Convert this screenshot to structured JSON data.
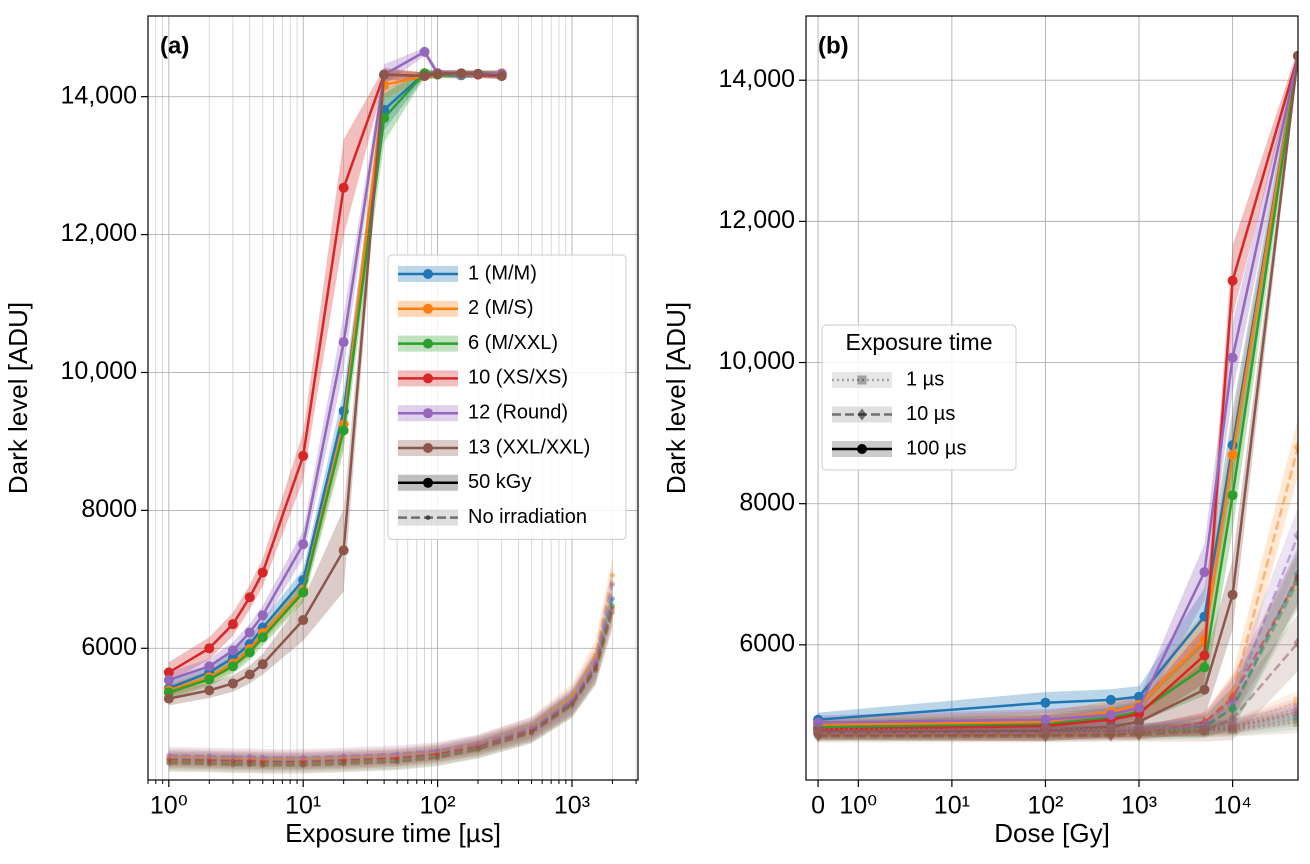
{
  "chart_data": [
    {
      "type": "line",
      "panel_label": "(a)",
      "xlabel": "Exposure time [µs]",
      "ylabel": "Dark level [ADU]",
      "xscale": "log",
      "xlim": [
        0.7,
        3100
      ],
      "ylim": [
        4090,
        15170
      ],
      "xticks": [
        {
          "value": 1,
          "label": "10⁰"
        },
        {
          "value": 10,
          "label": "10¹"
        },
        {
          "value": 100,
          "label": "10²"
        },
        {
          "value": 1000,
          "label": "10³"
        }
      ],
      "xminorticks": [
        0.7,
        0.8,
        0.9,
        2,
        3,
        4,
        5,
        6,
        7,
        8,
        9,
        20,
        30,
        40,
        50,
        60,
        70,
        80,
        90,
        200,
        300,
        400,
        500,
        600,
        700,
        800,
        900,
        2000,
        3000
      ],
      "yticks": [
        6000,
        8000,
        {
          "value": 10000,
          "label": "10,000"
        },
        {
          "value": 12000,
          "label": "12,000"
        },
        {
          "value": 14000,
          "label": "14,000"
        }
      ],
      "grid": true,
      "legend": "center right",
      "conditions": [
        {
          "name": "50 kGy",
          "linestyle": "solid",
          "marker": "circle",
          "color": "#000000",
          "alpha": 1,
          "x": [
            1,
            2,
            3,
            4,
            5,
            10,
            20,
            40,
            80,
            100,
            150,
            200,
            300
          ]
        },
        {
          "name": "No irradiation",
          "linestyle": "dashed",
          "marker": "point",
          "color": "#000000",
          "alpha": 0.5,
          "x": [
            1,
            2,
            3,
            4,
            5,
            10,
            20,
            50,
            100,
            200,
            500,
            1000,
            1500,
            2000
          ]
        }
      ],
      "series": [
        {
          "name": "1 (M/M)",
          "color": "#1f77b4",
          "values": [
            [
              5420,
              5650,
              5860,
              6060,
              6300,
              6990,
              9440,
              13810,
              14340,
              14330,
              14320,
              14330,
              14330
            ],
            [
              4400,
              4390,
              4380,
              4380,
              4370,
              4370,
              4390,
              4420,
              4480,
              4590,
              4820,
              5220,
              5750,
              6720
            ]
          ],
          "errors": [
            [
              100,
              100,
              110,
              110,
              120,
              150,
              300,
              300,
              60,
              50,
              50,
              50,
              50
            ],
            [
              120,
              120,
              120,
              120,
              120,
              120,
              120,
              120,
              120,
              130,
              150,
              180,
              220,
              250
            ]
          ]
        },
        {
          "name": "2 (M/S)",
          "color": "#ff7f0e",
          "values": [
            [
              5390,
              5580,
              5780,
              5990,
              6220,
              6840,
              9250,
              14170,
              14300,
              14320,
              14330,
              14320,
              14340
            ],
            [
              4420,
              4410,
              4400,
              4400,
              4390,
              4390,
              4410,
              4440,
              4500,
              4610,
              4860,
              5300,
              5900,
              7060
            ]
          ],
          "errors": [
            [
              100,
              100,
              110,
              110,
              120,
              150,
              300,
              200,
              60,
              50,
              50,
              50,
              50
            ],
            [
              120,
              120,
              120,
              120,
              120,
              120,
              120,
              120,
              120,
              130,
              150,
              180,
              220,
              250
            ]
          ]
        },
        {
          "name": "6 (M/XXL)",
          "color": "#2ca02c",
          "values": [
            [
              5360,
              5550,
              5740,
              5940,
              6160,
              6810,
              9160,
              13690,
              14340,
              14320,
              14310,
              14330,
              14320
            ],
            [
              4350,
              4340,
              4330,
              4330,
              4320,
              4320,
              4340,
              4370,
              4430,
              4540,
              4780,
              5180,
              5700,
              6620
            ]
          ],
          "errors": [
            [
              100,
              100,
              110,
              110,
              120,
              150,
              300,
              350,
              60,
              50,
              50,
              50,
              50
            ],
            [
              120,
              120,
              120,
              120,
              120,
              120,
              120,
              120,
              120,
              130,
              150,
              180,
              220,
              250
            ]
          ]
        },
        {
          "name": "10 (XS/XS)",
          "color": "#d62728",
          "values": [
            [
              5650,
              6000,
              6350,
              6740,
              7100,
              8790,
              12680,
              14320,
              14300,
              14340,
              14330,
              14320,
              14300
            ],
            [
              4380,
              4370,
              4360,
              4360,
              4350,
              4350,
              4370,
              4400,
              4460,
              4570,
              4800,
              5200,
              5720,
              6580
            ]
          ],
          "errors": [
            [
              150,
              160,
              170,
              180,
              200,
              350,
              700,
              100,
              50,
              50,
              50,
              50,
              50
            ],
            [
              120,
              120,
              120,
              120,
              120,
              120,
              120,
              120,
              120,
              130,
              150,
              180,
              220,
              250
            ]
          ]
        },
        {
          "name": "12 (Round)",
          "color": "#9467bd",
          "values": [
            [
              5540,
              5740,
              5970,
              6230,
              6480,
              7510,
              10440,
              14320,
              14650,
              14340,
              14320,
              14330,
              14330
            ],
            [
              4450,
              4440,
              4430,
              4430,
              4420,
              4420,
              4440,
              4470,
              4520,
              4620,
              4850,
              5250,
              5800,
              6930
            ]
          ],
          "errors": [
            [
              110,
              110,
              120,
              130,
              140,
              200,
              400,
              150,
              60,
              50,
              50,
              50,
              50
            ],
            [
              120,
              120,
              120,
              120,
              120,
              120,
              120,
              120,
              120,
              130,
              150,
              180,
              220,
              250
            ]
          ]
        },
        {
          "name": "13 (XXL/XXL)",
          "color": "#8c564b",
          "values": [
            [
              5270,
              5390,
              5490,
              5620,
              5770,
              6410,
              7420,
              14320,
              14300,
              14330,
              14340,
              14330,
              14300
            ],
            [
              4330,
              4320,
              4310,
              4310,
              4300,
              4300,
              4320,
              4350,
              4410,
              4530,
              4770,
              5170,
              5680,
              6520
            ]
          ],
          "errors": [
            [
              100,
              110,
              120,
              130,
              150,
              300,
              600,
              80,
              50,
              50,
              50,
              50,
              50
            ],
            [
              120,
              120,
              120,
              120,
              120,
              120,
              120,
              120,
              120,
              130,
              150,
              180,
              220,
              250
            ]
          ]
        }
      ]
    },
    {
      "type": "line",
      "panel_label": "(b)",
      "xlabel": "Dose [Gy]",
      "ylabel": "Dark level [ADU]",
      "xscale": "symlog",
      "linthresh": 1,
      "xlim": [
        -0.3,
        50000
      ],
      "ylim": [
        4085,
        14910
      ],
      "xticks": [
        0,
        {
          "value": 1,
          "label": "10⁰"
        },
        {
          "value": 10,
          "label": "10¹"
        },
        {
          "value": 100,
          "label": "10²"
        },
        {
          "value": 1000,
          "label": "10³"
        },
        {
          "value": 10000,
          "label": "10⁴"
        }
      ],
      "yticks": [
        6000,
        8000,
        {
          "value": 10000,
          "label": "10,000"
        },
        {
          "value": 12000,
          "label": "12,000"
        },
        {
          "value": 14000,
          "label": "14,000"
        }
      ],
      "grid": true,
      "legend": "center left",
      "legend_title": "Exposure time",
      "x": [
        0,
        100,
        500,
        1000,
        5000,
        10000,
        50000
      ],
      "conditions": [
        {
          "name": "1 µs",
          "linestyle": "dotted",
          "marker": "square",
          "color": "#000000",
          "alpha": 0.3
        },
        {
          "name": "10 µs",
          "linestyle": "dashed",
          "marker": "diamond",
          "color": "#000000",
          "alpha": 0.5
        },
        {
          "name": "100 µs",
          "linestyle": "solid",
          "marker": "circle",
          "color": "#000000",
          "alpha": 1
        }
      ],
      "series": [
        {
          "name": "1 (M/M)",
          "color": "#1f77b4",
          "values": [
            [
              4820,
              4820,
              4820,
              4820,
              4830,
              4850,
              5000
            ],
            [
              4760,
              4760,
              4770,
              4780,
              4850,
              5100,
              7000
            ],
            [
              4940,
              5180,
              5220,
              5265,
              6400,
              8830,
              14345
            ]
          ],
          "errors": [
            [
              80,
              80,
              80,
              80,
              90,
              100,
              150
            ],
            [
              80,
              80,
              80,
              90,
              150,
              300,
              400
            ],
            [
              100,
              150,
              150,
              150,
              400,
              500,
              100
            ]
          ]
        },
        {
          "name": "2 (M/S)",
          "color": "#ff7f0e",
          "values": [
            [
              4800,
              4800,
              4800,
              4800,
              4810,
              4840,
              5200
            ],
            [
              4740,
              4740,
              4750,
              4760,
              4880,
              5300,
              8800
            ],
            [
              4870,
              4910,
              5050,
              5150,
              6070,
              8690,
              14345
            ]
          ],
          "errors": [
            [
              80,
              80,
              80,
              80,
              90,
              100,
              150
            ],
            [
              80,
              80,
              80,
              90,
              150,
              300,
              400
            ],
            [
              100,
              150,
              150,
              150,
              400,
              500,
              100
            ]
          ]
        },
        {
          "name": "6 (M/XXL)",
          "color": "#2ca02c",
          "values": [
            [
              4780,
              4780,
              4780,
              4780,
              4790,
              4810,
              4950
            ],
            [
              4720,
              4720,
              4730,
              4740,
              4830,
              5100,
              6900
            ],
            [
              4830,
              4870,
              4970,
              5050,
              5680,
              8120,
              14345
            ]
          ],
          "errors": [
            [
              80,
              80,
              80,
              80,
              90,
              100,
              150
            ],
            [
              80,
              80,
              80,
              90,
              150,
              300,
              400
            ],
            [
              100,
              150,
              150,
              150,
              400,
              500,
              100
            ]
          ]
        },
        {
          "name": "10 (XS/XS)",
          "color": "#d62728",
          "values": [
            [
              4790,
              4790,
              4790,
              4790,
              4800,
              4830,
              5050
            ],
            [
              4730,
              4730,
              4740,
              4750,
              4900,
              5250,
              6950
            ],
            [
              4800,
              4850,
              4940,
              5020,
              5850,
              11160,
              14345
            ]
          ],
          "errors": [
            [
              80,
              80,
              80,
              80,
              90,
              100,
              150
            ],
            [
              80,
              80,
              80,
              90,
              150,
              300,
              400
            ],
            [
              100,
              150,
              150,
              150,
              400,
              500,
              100
            ]
          ]
        },
        {
          "name": "12 (Round)",
          "color": "#9467bd",
          "values": [
            [
              4810,
              4810,
              4810,
              4810,
              4820,
              4850,
              5100
            ],
            [
              4750,
              4750,
              4760,
              4770,
              4870,
              5200,
              7550
            ],
            [
              4900,
              4940,
              5010,
              5110,
              7030,
              10070,
              14345
            ]
          ],
          "errors": [
            [
              80,
              80,
              80,
              80,
              90,
              100,
              150
            ],
            [
              80,
              80,
              80,
              90,
              150,
              300,
              400
            ],
            [
              100,
              150,
              150,
              150,
              400,
              500,
              100
            ]
          ]
        },
        {
          "name": "13 (XXL/XXL)",
          "color": "#8c564b",
          "values": [
            [
              4770,
              4770,
              4770,
              4770,
              4780,
              4800,
              4900
            ],
            [
              4700,
              4700,
              4710,
              4720,
              4780,
              4950,
              6030
            ],
            [
              4755,
              4785,
              4840,
              4910,
              5365,
              6710,
              14345
            ]
          ],
          "errors": [
            [
              80,
              80,
              80,
              80,
              90,
              100,
              150
            ],
            [
              80,
              80,
              80,
              90,
              150,
              300,
              400
            ],
            [
              100,
              150,
              150,
              150,
              400,
              500,
              100
            ]
          ]
        }
      ]
    }
  ]
}
